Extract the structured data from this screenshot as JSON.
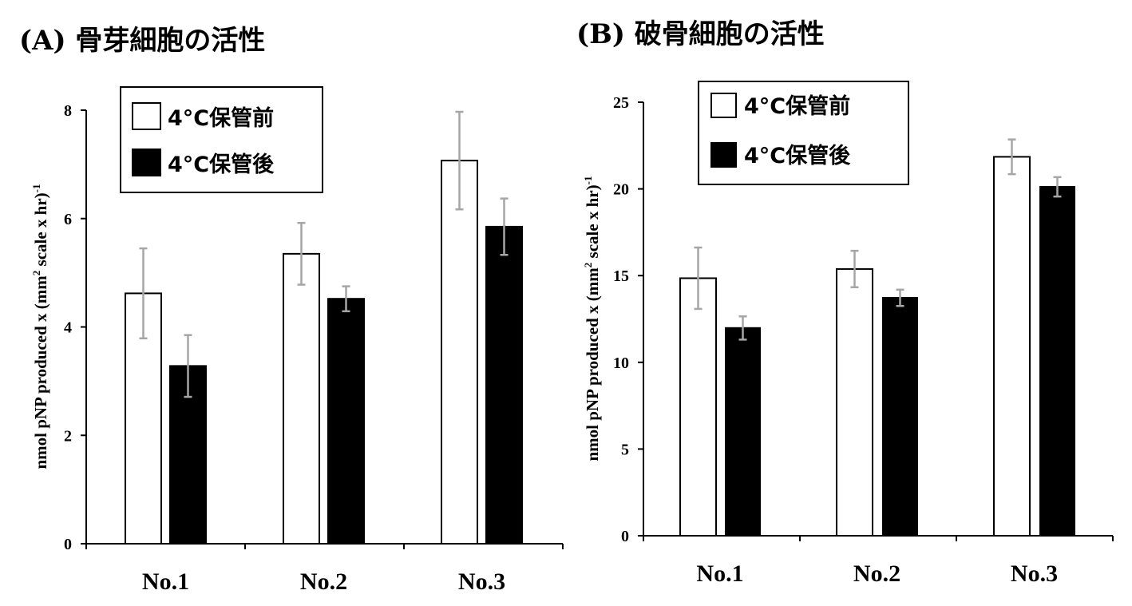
{
  "chart_data": [
    {
      "type": "bar",
      "title": "(A) 骨芽細胞の活性",
      "ylabel_main": "nmol pNP produced x (mm",
      "ylabel_sup1": "2",
      "ylabel_rest": " scale x hr)",
      "ylabel_sup2": "-1",
      "xlabel": "",
      "categories": [
        "No.1",
        "No.2",
        "No.3"
      ],
      "ylim": [
        0,
        8
      ],
      "yticks": [
        0,
        2,
        4,
        6,
        8
      ],
      "series": [
        {
          "name": "4°C保管前",
          "fill": "#ffffff",
          "values": [
            4.62,
            5.35,
            7.07
          ],
          "errors": [
            0.83,
            0.57,
            0.9
          ]
        },
        {
          "name": "4°C保管後",
          "fill": "#000000",
          "values": [
            3.28,
            4.52,
            5.85
          ],
          "errors": [
            0.57,
            0.23,
            0.52
          ]
        }
      ],
      "legend_position": "top-left"
    },
    {
      "type": "bar",
      "title": "(B) 破骨細胞の活性",
      "ylabel_main": "nmol pNP produced x (mm",
      "ylabel_sup1": "2",
      "ylabel_rest": " scale x hr)",
      "ylabel_sup2": "-1",
      "xlabel": "",
      "categories": [
        "No.1",
        "No.2",
        "No.3"
      ],
      "ylim": [
        0,
        25
      ],
      "yticks": [
        0,
        5,
        10,
        15,
        20,
        25
      ],
      "series": [
        {
          "name": "4°C保管前",
          "fill": "#ffffff",
          "values": [
            14.85,
            15.38,
            21.85
          ],
          "errors": [
            1.77,
            1.05,
            1.0
          ]
        },
        {
          "name": "4°C保管後",
          "fill": "#000000",
          "values": [
            11.98,
            13.72,
            20.12
          ],
          "errors": [
            0.67,
            0.47,
            0.56
          ]
        }
      ],
      "legend_position": "top-left"
    }
  ]
}
